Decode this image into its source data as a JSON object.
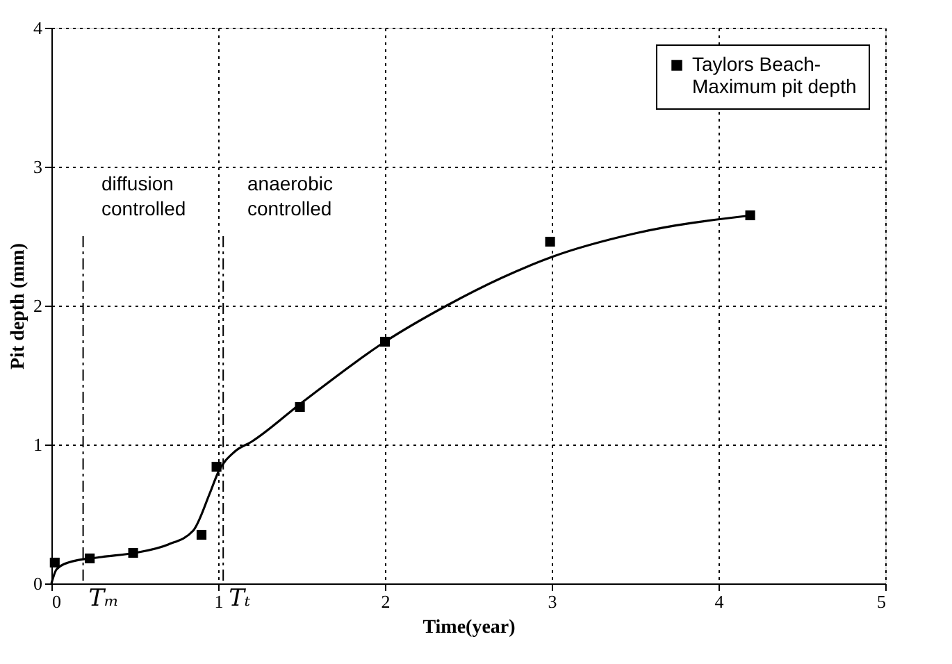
{
  "chart_data": {
    "type": "scatter",
    "xlabel": "Time(year)",
    "ylabel": "Pit depth (mm)",
    "xlim": [
      0,
      5
    ],
    "xticks": [
      0,
      1,
      2,
      3,
      4,
      5
    ],
    "ylim": [
      0,
      4
    ],
    "yticks": [
      0,
      1,
      2,
      3,
      4
    ],
    "grid": true,
    "legend": "top right",
    "series": [
      {
        "name": "Taylors Beach-\nMaximum pit depth",
        "marker": "square",
        "color": "#000000",
        "x": [
          0.02,
          0.23,
          0.49,
          0.9,
          0.99,
          1.49,
          2.0,
          2.99,
          4.19
        ],
        "values": [
          0.15,
          0.18,
          0.22,
          0.35,
          0.84,
          1.27,
          1.74,
          2.46,
          2.65
        ]
      },
      {
        "type": "line",
        "color": "#000000",
        "line_style": "solid",
        "x": [
          0,
          0.03,
          0.1,
          0.3,
          0.5,
          0.7,
          0.85,
          0.95,
          1.0,
          1.1,
          1.2,
          1.5,
          2.0,
          2.37,
          2.7,
          3.0,
          3.5,
          4.2
        ],
        "values": [
          0,
          0.1,
          0.15,
          0.19,
          0.22,
          0.28,
          0.38,
          0.65,
          0.8,
          0.95,
          1.02,
          1.3,
          1.74,
          2.0,
          2.2,
          2.35,
          2.52,
          2.65
        ]
      }
    ],
    "ref_lines": [
      {
        "axis": "x",
        "value": 0.19,
        "label": "Tₘ",
        "color": "#000000",
        "line_style": "dashdot"
      },
      {
        "axis": "x",
        "value": 1.03,
        "label": "Tₜ",
        "color": "#000000",
        "line_style": "dashdot"
      }
    ],
    "annotations": [
      "diffusion\ncontrolled",
      "anaerobic\ncontrolled"
    ]
  }
}
